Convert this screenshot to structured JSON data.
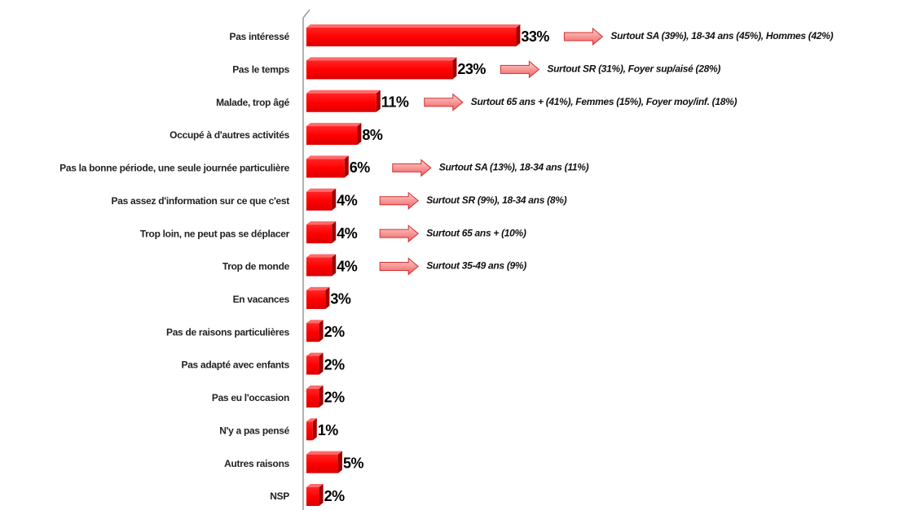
{
  "chart_data": {
    "type": "bar",
    "orientation": "horizontal",
    "color": "#ff0000",
    "categories": [
      "Pas intéressé",
      "Pas le temps",
      "Malade, trop âgé",
      "Occupé à d'autres activités",
      "Pas la bonne période, une seule journée particulière",
      "Pas assez d'information sur ce que c'est",
      "Trop loin, ne peut pas se déplacer",
      "Trop de monde",
      "En vacances",
      "Pas de raisons particulières",
      "Pas adapté avec enfants",
      "Pas eu l'occasion",
      "N'y a pas pensé",
      "Autres raisons",
      "NSP"
    ],
    "values": [
      33,
      23,
      11,
      8,
      6,
      4,
      4,
      4,
      3,
      2,
      2,
      2,
      1,
      5,
      2
    ],
    "value_labels": [
      "33%",
      "23%",
      "11%",
      "8%",
      "6%",
      "4%",
      "4%",
      "4%",
      "3%",
      "2%",
      "2%",
      "2%",
      "1%",
      "5%",
      "2%"
    ],
    "annotations": [
      "Surtout SA (39%), 18-34 ans (45%), Hommes (42%)",
      "Surtout SR (31%), Foyer sup/aisé (28%)",
      "Surtout 65 ans + (41%), Femmes (15%), Foyer moy/inf. (18%)",
      null,
      "Surtout SA (13%), 18-34 ans (11%)",
      "Surtout SR (9%), 18-34 ans (8%)",
      "Surtout 65 ans + (10%)",
      "Surtout 35-49 ans (9%)",
      null,
      null,
      null,
      null,
      null,
      null,
      null
    ]
  }
}
